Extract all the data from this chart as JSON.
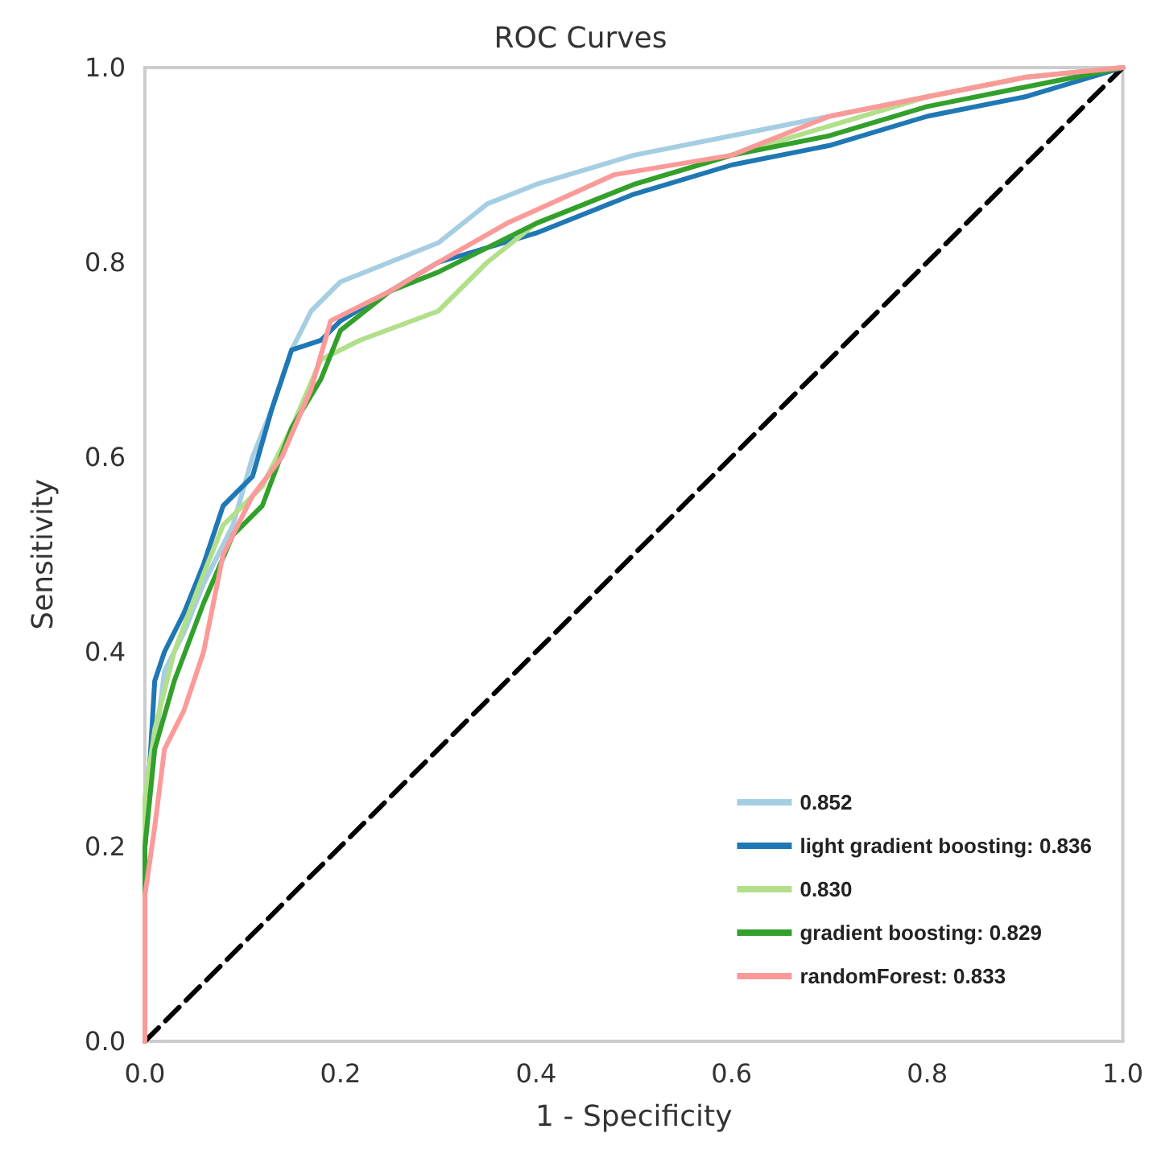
{
  "chart_data": {
    "type": "line",
    "title": "ROC Curves",
    "xlabel": "1 - Specificity",
    "ylabel": "Sensitivity",
    "xlim": [
      0,
      1
    ],
    "ylim": [
      0,
      1
    ],
    "xticks": [
      {
        "value": 0,
        "label": "0.0"
      },
      0.2,
      0.4,
      0.6,
      0.8,
      {
        "value": 1,
        "label": "1.0"
      }
    ],
    "yticks": [
      {
        "value": 0,
        "label": "0.0"
      },
      0.2,
      0.4,
      0.6,
      0.8,
      {
        "value": 1,
        "label": "1.0"
      }
    ],
    "grid": false,
    "legend": "bottom right",
    "marker": "none",
    "series": [
      {
        "name": "0.852",
        "color": "#a6cee3",
        "x": [
          0,
          0,
          0.01,
          0.02,
          0.04,
          0.06,
          0.09,
          0.11,
          0.13,
          0.15,
          0.17,
          0.2,
          0.25,
          0.3,
          0.35,
          0.4,
          0.5,
          0.6,
          0.7,
          0.8,
          0.9,
          1
        ],
        "values": [
          0,
          0.2,
          0.3,
          0.38,
          0.42,
          0.47,
          0.53,
          0.6,
          0.65,
          0.71,
          0.75,
          0.78,
          0.8,
          0.82,
          0.86,
          0.88,
          0.91,
          0.93,
          0.95,
          0.97,
          0.99,
          1
        ]
      },
      {
        "name": "light gradient boosting: 0.836",
        "color": "#1f78b4",
        "x": [
          0,
          0,
          0.01,
          0.02,
          0.04,
          0.06,
          0.08,
          0.11,
          0.13,
          0.15,
          0.18,
          0.2,
          0.25,
          0.3,
          0.4,
          0.5,
          0.6,
          0.7,
          0.8,
          0.9,
          1
        ],
        "values": [
          0,
          0.2,
          0.37,
          0.4,
          0.44,
          0.49,
          0.55,
          0.58,
          0.65,
          0.71,
          0.72,
          0.74,
          0.77,
          0.8,
          0.83,
          0.87,
          0.9,
          0.92,
          0.95,
          0.97,
          1
        ]
      },
      {
        "name": "0.830",
        "color": "#b2df8a",
        "x": [
          0,
          0,
          0.01,
          0.03,
          0.06,
          0.08,
          0.12,
          0.15,
          0.18,
          0.22,
          0.3,
          0.35,
          0.4,
          0.5,
          0.6,
          0.7,
          0.8,
          0.9,
          1
        ],
        "values": [
          0,
          0.25,
          0.32,
          0.4,
          0.48,
          0.53,
          0.57,
          0.63,
          0.7,
          0.72,
          0.75,
          0.8,
          0.84,
          0.88,
          0.91,
          0.94,
          0.97,
          0.99,
          1
        ]
      },
      {
        "name": "gradient boosting: 0.829",
        "color": "#33a02c",
        "x": [
          0,
          0,
          0.01,
          0.03,
          0.06,
          0.09,
          0.12,
          0.15,
          0.18,
          0.2,
          0.25,
          0.3,
          0.4,
          0.5,
          0.6,
          0.7,
          0.8,
          0.9,
          1
        ],
        "values": [
          0,
          0.2,
          0.3,
          0.37,
          0.45,
          0.52,
          0.55,
          0.63,
          0.68,
          0.73,
          0.77,
          0.79,
          0.84,
          0.88,
          0.91,
          0.93,
          0.96,
          0.98,
          1
        ]
      },
      {
        "name": "randomForest: 0.833",
        "color": "#fb9a99",
        "x": [
          0,
          0,
          0.01,
          0.02,
          0.04,
          0.06,
          0.08,
          0.11,
          0.14,
          0.17,
          0.19,
          0.25,
          0.3,
          0.37,
          0.48,
          0.6,
          0.7,
          0.8,
          0.9,
          1
        ],
        "values": [
          0,
          0.15,
          0.22,
          0.3,
          0.34,
          0.4,
          0.5,
          0.56,
          0.6,
          0.67,
          0.74,
          0.77,
          0.8,
          0.84,
          0.89,
          0.91,
          0.95,
          0.97,
          0.99,
          1
        ]
      },
      {
        "color": "#000000",
        "line_style": "dashed",
        "x": [
          0,
          1
        ],
        "values": [
          0,
          1
        ]
      }
    ]
  }
}
